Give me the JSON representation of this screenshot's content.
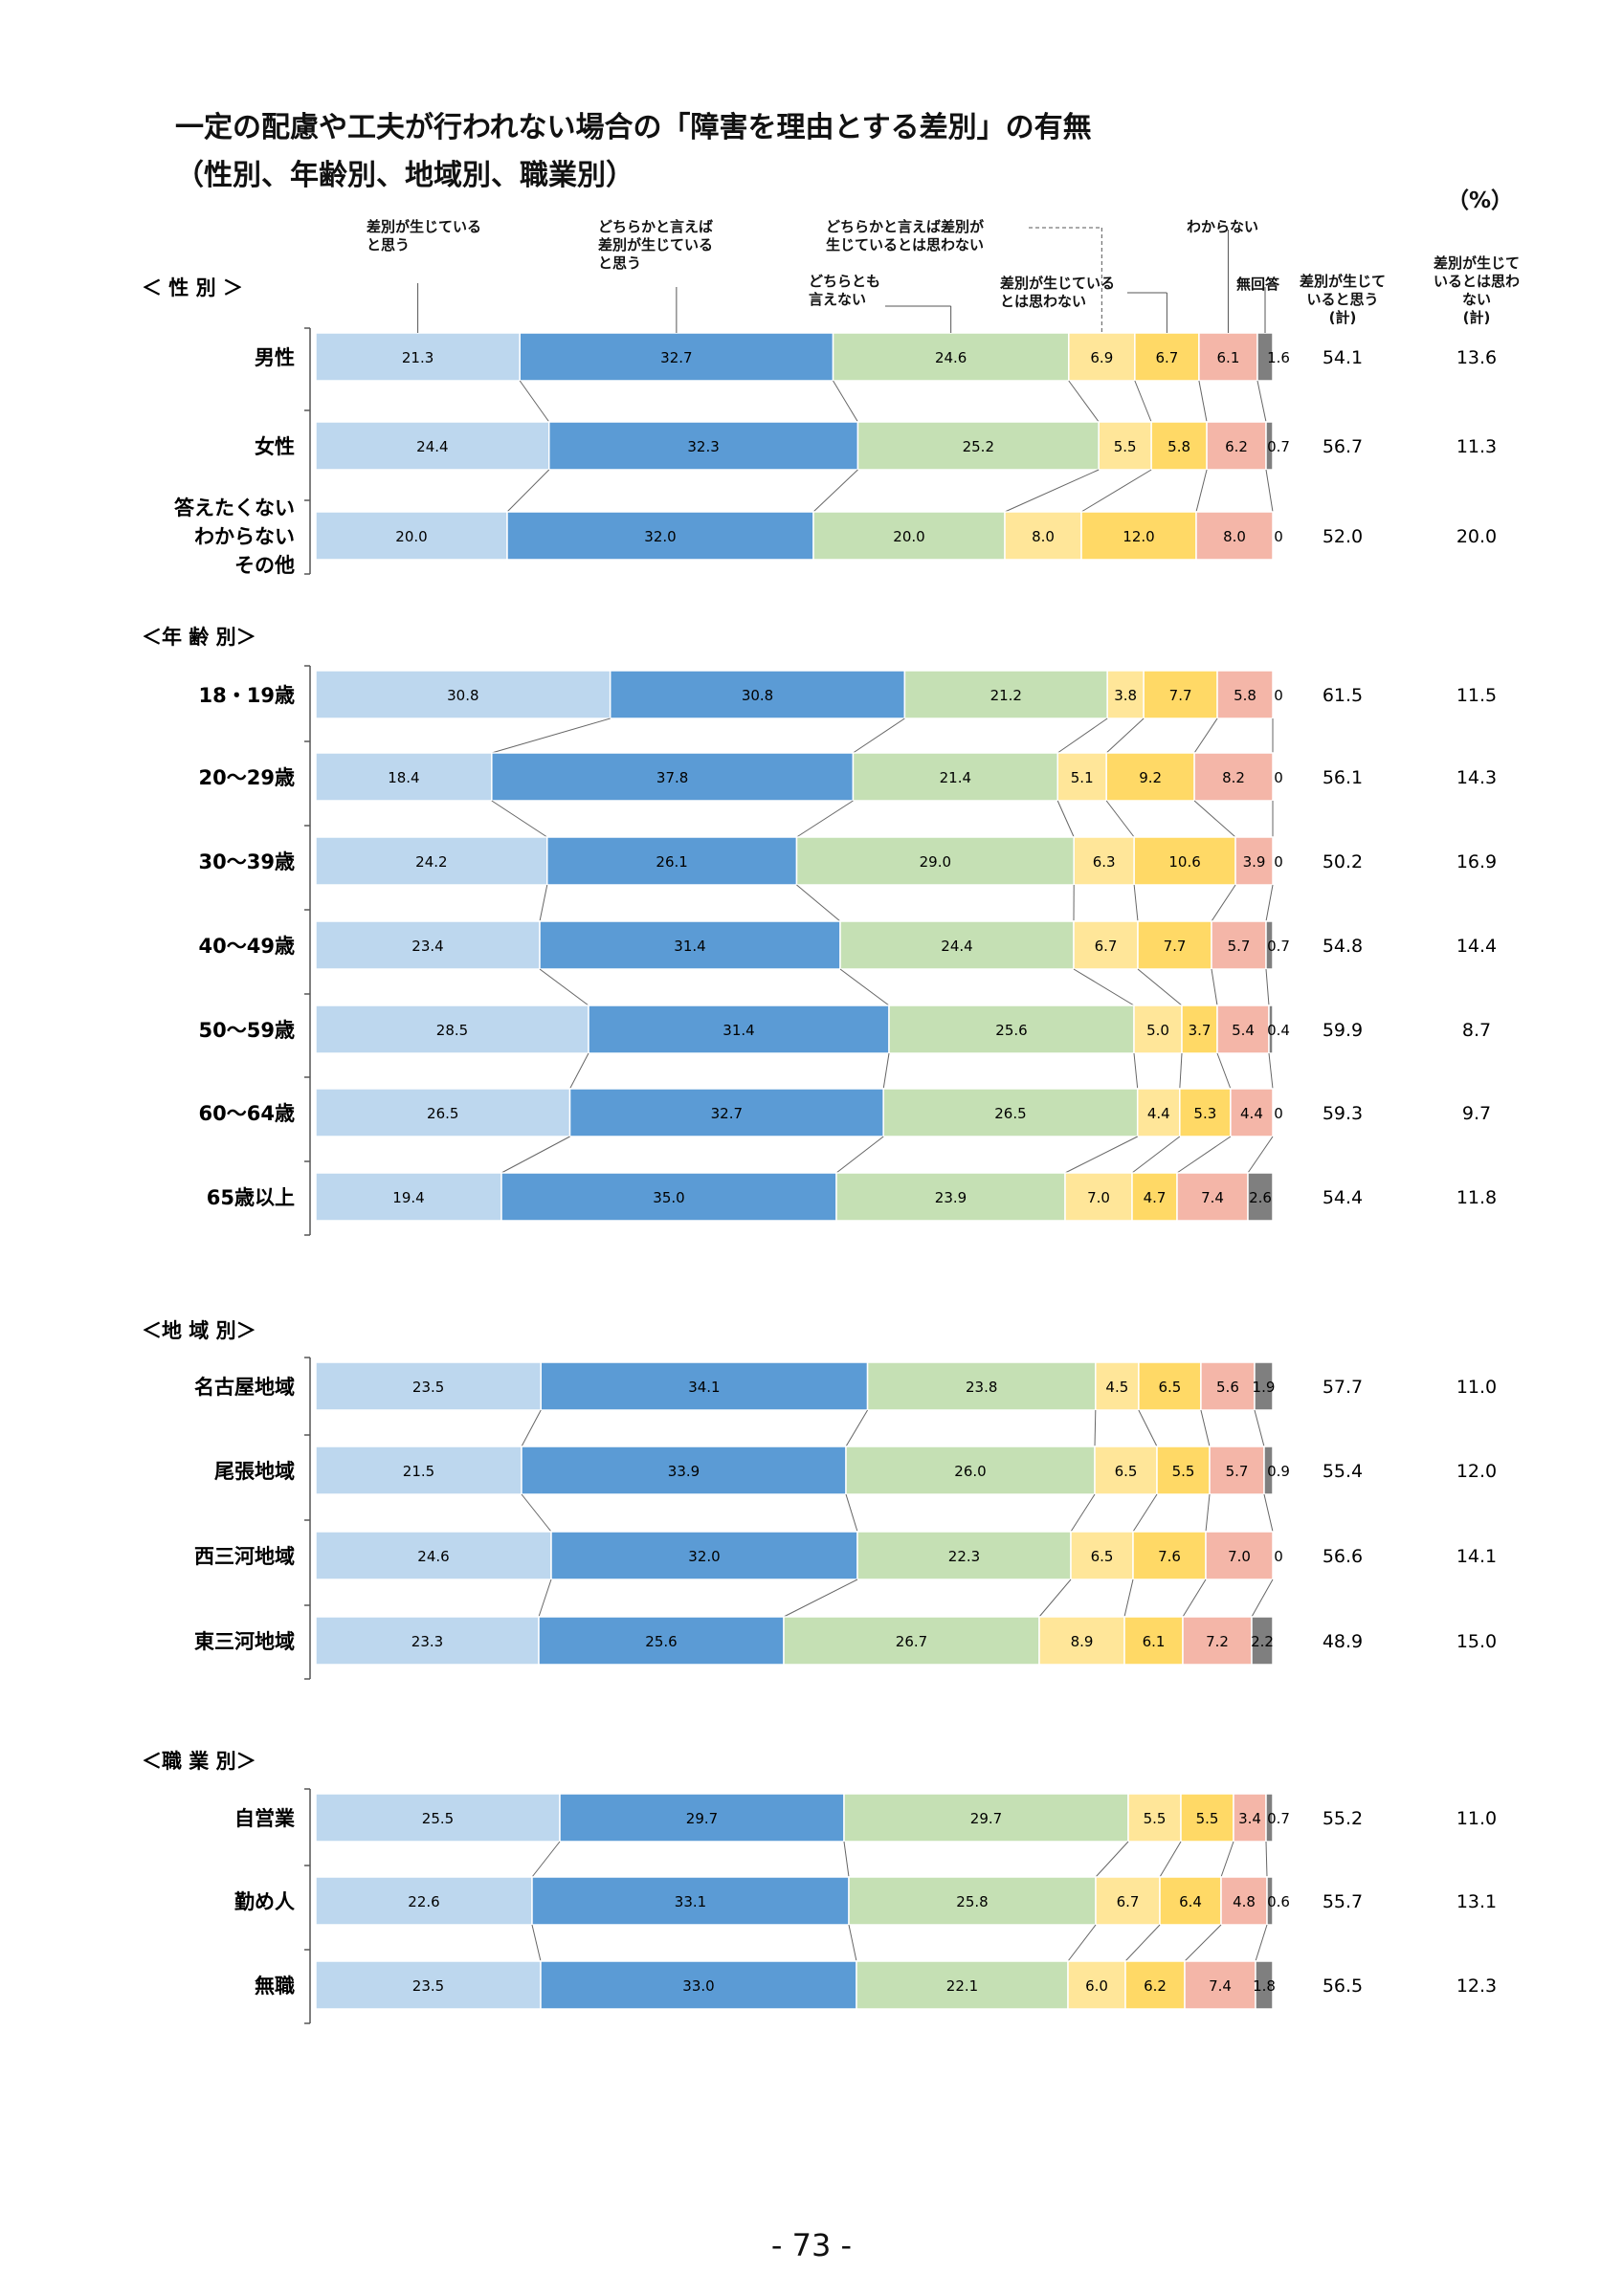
{
  "page": {
    "title_line1": "一定の配慮や工夫が行われない場合の「障害を理由とする差別」の有無",
    "title_line2": "（性別、年齢別、地域別、職業別）",
    "unit": "（%）",
    "page_number": "- 73 -"
  },
  "header": {
    "c1": [
      "差別が生じている",
      "と思う"
    ],
    "c2": [
      "どちらかと言えば",
      "差別が生じている",
      "と思う"
    ],
    "c3": [
      "どちらとも",
      "言えない"
    ],
    "c4": [
      "どちらかと言えば差別が",
      "生じているとは思わない"
    ],
    "c5": [
      "差別が生じている",
      "とは思わない"
    ],
    "c6": [
      "わからない"
    ],
    "c7": [
      "無回答"
    ],
    "sum1": [
      "差別が生じて",
      "いると思う",
      "(計)"
    ],
    "sum2": [
      "差別が生じて",
      "いるとは思わ",
      "ない",
      "(計)"
    ]
  },
  "chart_data": {
    "type": "bar",
    "stacked": "horizontal-100%",
    "series_colors": [
      "#bdd7ee",
      "#5b9bd5",
      "#c5e0b4",
      "#ffe699",
      "#ffd966",
      "#f4b6a8",
      "#7f7f7f"
    ],
    "groups": [
      {
        "label": "＜ 性 別 ＞",
        "rows": [
          {
            "label": [
              "男性"
            ],
            "values": [
              21.3,
              32.7,
              24.6,
              6.9,
              6.7,
              6.1,
              1.6
            ],
            "sum_yes": "54.1",
            "sum_no": "13.6"
          },
          {
            "label": [
              "女性"
            ],
            "values": [
              24.4,
              32.3,
              25.2,
              5.5,
              5.8,
              6.2,
              0.7
            ],
            "sum_yes": "56.7",
            "sum_no": "11.3"
          },
          {
            "label": [
              "答えたくない",
              "わからない",
              "その他"
            ],
            "values": [
              20.0,
              32.0,
              20.0,
              8.0,
              12.0,
              8.0,
              0
            ],
            "sum_yes": "52.0",
            "sum_no": "20.0"
          }
        ]
      },
      {
        "label": "＜年 齢 別＞",
        "rows": [
          {
            "label": [
              "18・19歳"
            ],
            "values": [
              30.8,
              30.8,
              21.2,
              3.8,
              7.7,
              5.8,
              0
            ],
            "sum_yes": "61.5",
            "sum_no": "11.5"
          },
          {
            "label": [
              "20～29歳"
            ],
            "values": [
              18.4,
              37.8,
              21.4,
              5.1,
              9.2,
              8.2,
              0
            ],
            "sum_yes": "56.1",
            "sum_no": "14.3"
          },
          {
            "label": [
              "30～39歳"
            ],
            "values": [
              24.2,
              26.1,
              29.0,
              6.3,
              10.6,
              3.9,
              0
            ],
            "sum_yes": "50.2",
            "sum_no": "16.9"
          },
          {
            "label": [
              "40～49歳"
            ],
            "values": [
              23.4,
              31.4,
              24.4,
              6.7,
              7.7,
              5.7,
              0.7
            ],
            "sum_yes": "54.8",
            "sum_no": "14.4"
          },
          {
            "label": [
              "50～59歳"
            ],
            "values": [
              28.5,
              31.4,
              25.6,
              5.0,
              3.7,
              5.4,
              0.4
            ],
            "sum_yes": "59.9",
            "sum_no": "8.7"
          },
          {
            "label": [
              "60～64歳"
            ],
            "values": [
              26.5,
              32.7,
              26.5,
              4.4,
              5.3,
              4.4,
              0
            ],
            "sum_yes": "59.3",
            "sum_no": "9.7"
          },
          {
            "label": [
              "65歳以上"
            ],
            "values": [
              19.4,
              35.0,
              23.9,
              7.0,
              4.7,
              7.4,
              2.6
            ],
            "sum_yes": "54.4",
            "sum_no": "11.8"
          }
        ]
      },
      {
        "label": "＜地 域 別＞",
        "rows": [
          {
            "label": [
              "名古屋地域"
            ],
            "values": [
              23.5,
              34.1,
              23.8,
              4.5,
              6.5,
              5.6,
              1.9
            ],
            "sum_yes": "57.7",
            "sum_no": "11.0"
          },
          {
            "label": [
              "尾張地域"
            ],
            "values": [
              21.5,
              33.9,
              26.0,
              6.5,
              5.5,
              5.7,
              0.9
            ],
            "sum_yes": "55.4",
            "sum_no": "12.0"
          },
          {
            "label": [
              "西三河地域"
            ],
            "values": [
              24.6,
              32.0,
              22.3,
              6.5,
              7.6,
              7.0,
              0
            ],
            "sum_yes": "56.6",
            "sum_no": "14.1"
          },
          {
            "label": [
              "東三河地域"
            ],
            "values": [
              23.3,
              25.6,
              26.7,
              8.9,
              6.1,
              7.2,
              2.2
            ],
            "sum_yes": "48.9",
            "sum_no": "15.0"
          }
        ]
      },
      {
        "label": "＜職 業 別＞",
        "rows": [
          {
            "label": [
              "自営業"
            ],
            "values": [
              25.5,
              29.7,
              29.7,
              5.5,
              5.5,
              3.4,
              0.7
            ],
            "sum_yes": "55.2",
            "sum_no": "11.0"
          },
          {
            "label": [
              "勤め人"
            ],
            "values": [
              22.6,
              33.1,
              25.8,
              6.7,
              6.4,
              4.8,
              0.6
            ],
            "sum_yes": "55.7",
            "sum_no": "13.1"
          },
          {
            "label": [
              "無職"
            ],
            "values": [
              23.5,
              33.0,
              22.1,
              6.0,
              6.2,
              7.4,
              1.8
            ],
            "sum_yes": "56.5",
            "sum_no": "12.3"
          }
        ]
      }
    ]
  }
}
